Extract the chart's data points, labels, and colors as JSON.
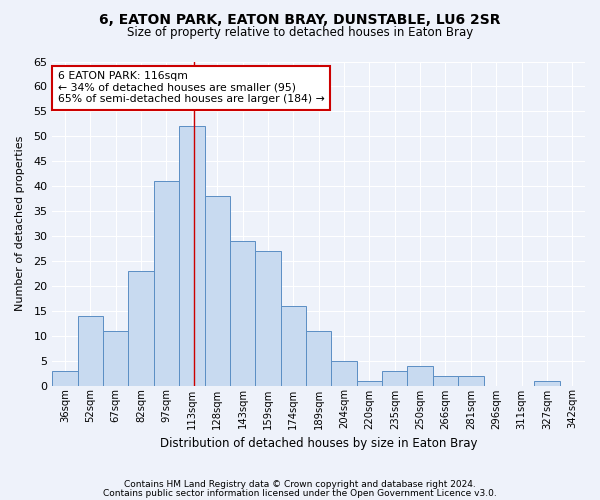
{
  "title": "6, EATON PARK, EATON BRAY, DUNSTABLE, LU6 2SR",
  "subtitle": "Size of property relative to detached houses in Eaton Bray",
  "xlabel": "Distribution of detached houses by size in Eaton Bray",
  "ylabel": "Number of detached properties",
  "categories": [
    "36sqm",
    "52sqm",
    "67sqm",
    "82sqm",
    "97sqm",
    "113sqm",
    "128sqm",
    "143sqm",
    "159sqm",
    "174sqm",
    "189sqm",
    "204sqm",
    "220sqm",
    "235sqm",
    "250sqm",
    "266sqm",
    "281sqm",
    "296sqm",
    "311sqm",
    "327sqm",
    "342sqm"
  ],
  "values": [
    3,
    14,
    11,
    23,
    41,
    52,
    38,
    29,
    27,
    16,
    11,
    5,
    1,
    3,
    4,
    2,
    2,
    0,
    0,
    1,
    0
  ],
  "bar_color": "#c8daf0",
  "bar_edge_color": "#5b8ec4",
  "marker_bin_index": 5,
  "annotation_title": "6 EATON PARK: 116sqm",
  "annotation_line1": "← 34% of detached houses are smaller (95)",
  "annotation_line2": "65% of semi-detached houses are larger (184) →",
  "annotation_box_facecolor": "#ffffff",
  "annotation_box_edgecolor": "#cc0000",
  "marker_line_color": "#cc0000",
  "ylim": [
    0,
    65
  ],
  "yticks": [
    0,
    5,
    10,
    15,
    20,
    25,
    30,
    35,
    40,
    45,
    50,
    55,
    60,
    65
  ],
  "footer1": "Contains HM Land Registry data © Crown copyright and database right 2024.",
  "footer2": "Contains public sector information licensed under the Open Government Licence v3.0.",
  "bg_color": "#eef2fa",
  "grid_color": "#ffffff"
}
